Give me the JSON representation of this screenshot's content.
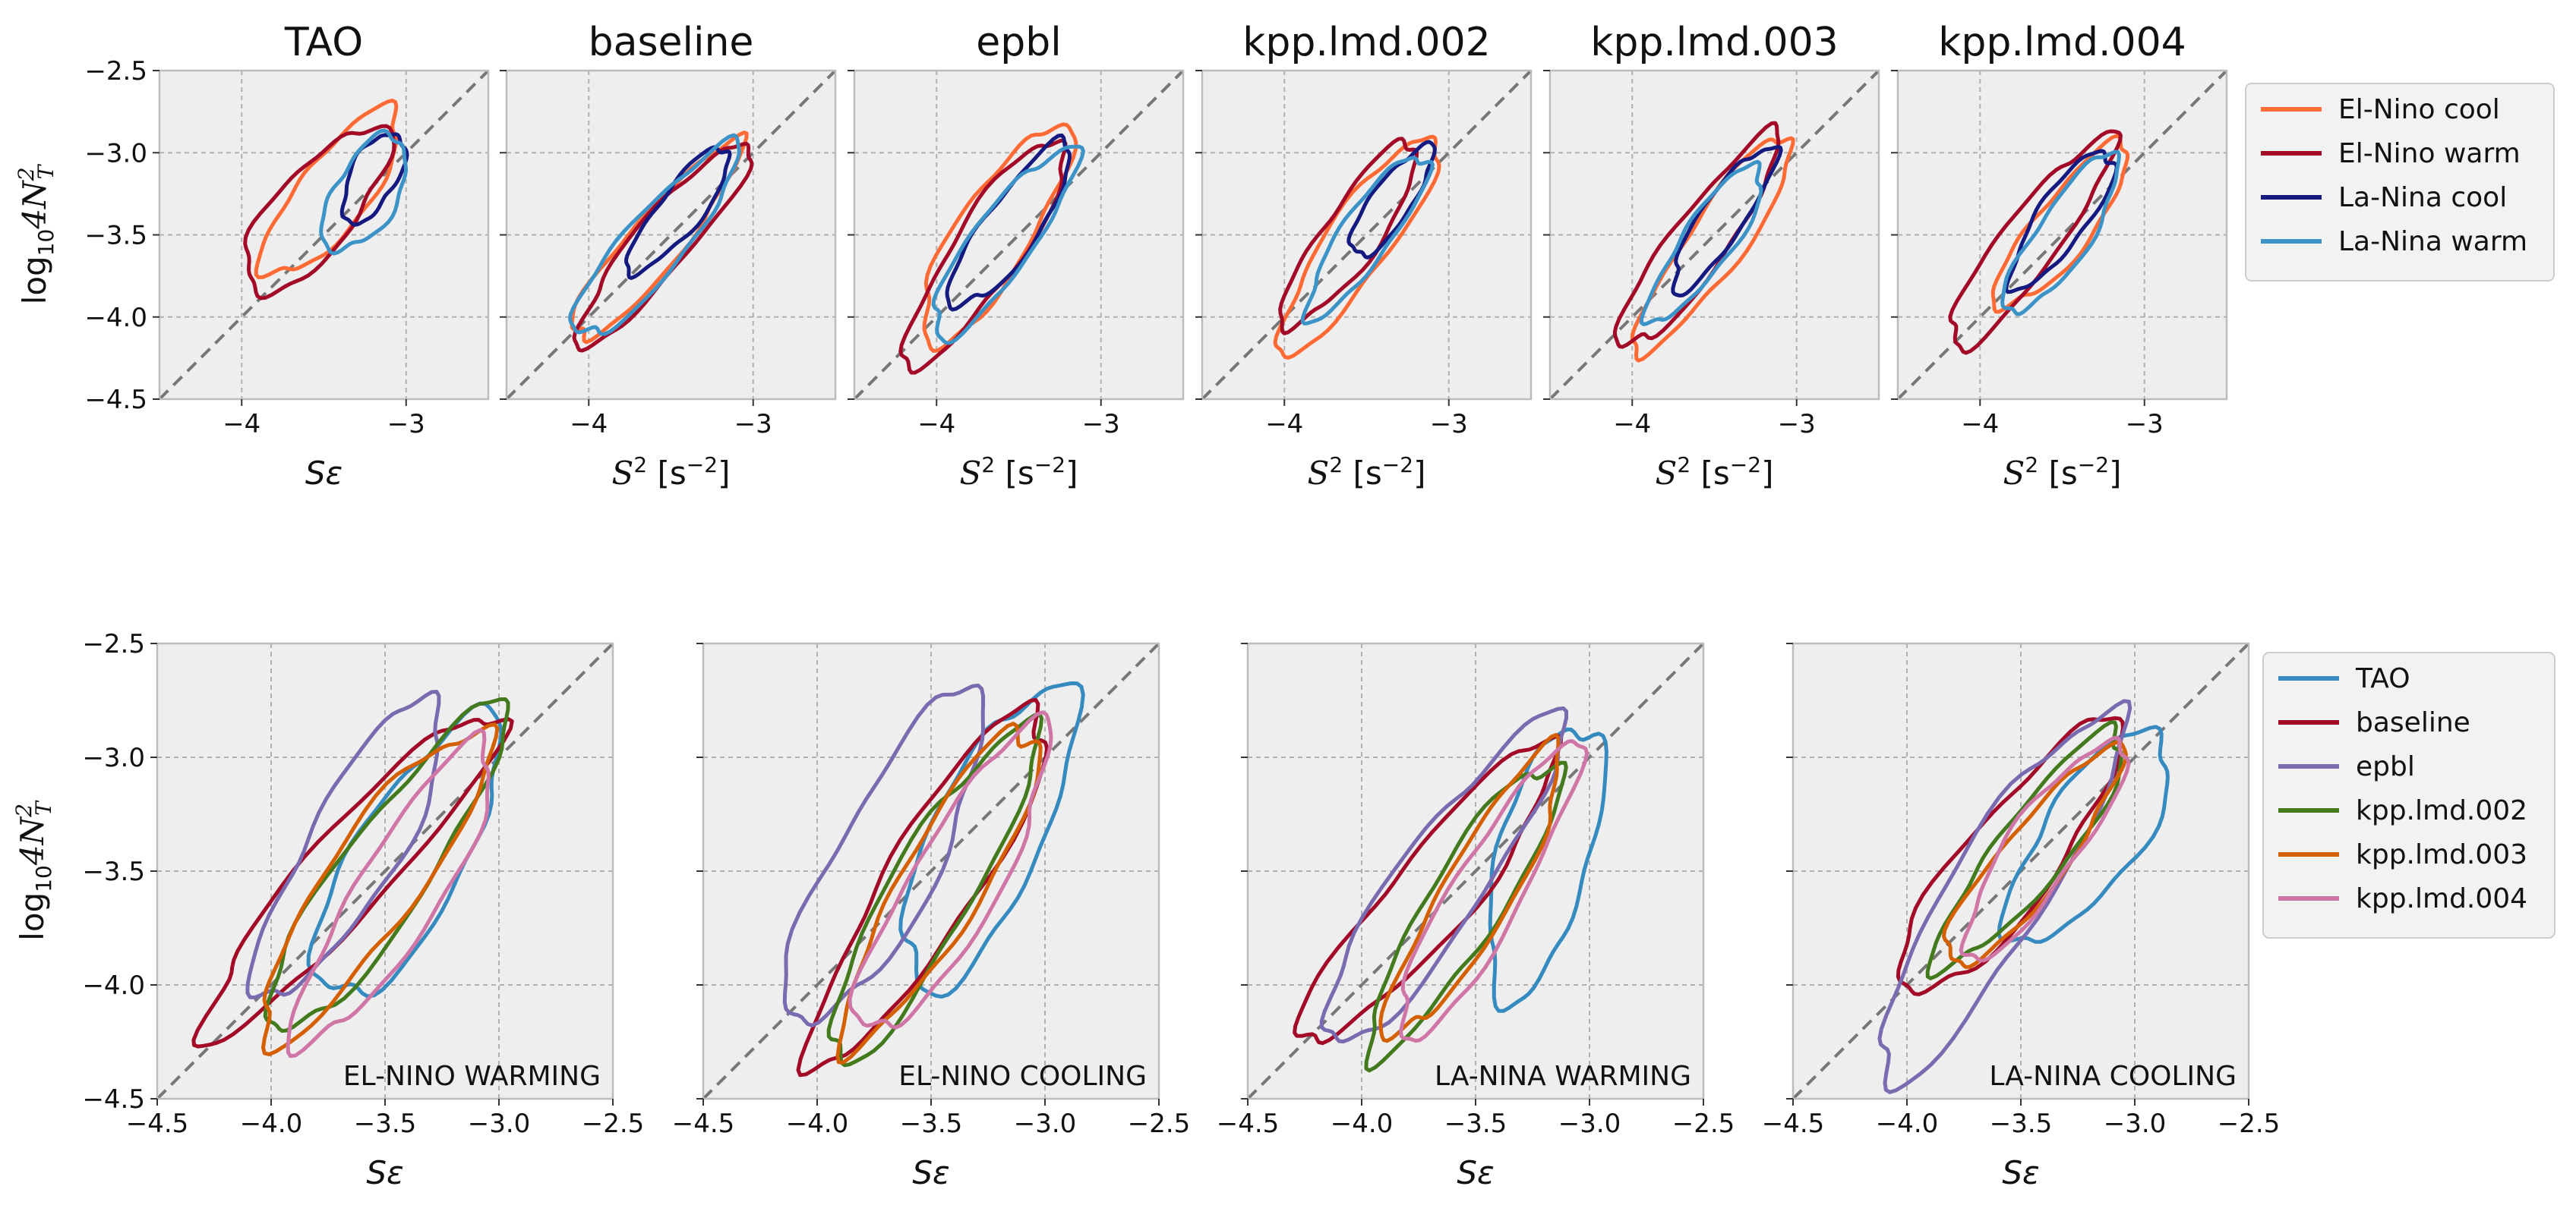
{
  "colors": {
    "El-Nino cool": "#ff6a35",
    "El-Nino warm": "#a20a27",
    "La-Nina cool": "#141a80",
    "La-Nina warm": "#3c93c8",
    "TAO": "#358bbf",
    "baseline": "#a20a27",
    "epbl": "#7a6bb0",
    "kpp.lmd.002": "#447a1e",
    "kpp.lmd.003": "#d46002",
    "kpp.lmd.004": "#cf76a6",
    "axes_bg": "#eeeeee",
    "grid": "#b0b0b0",
    "diagonal": "#777777"
  },
  "chart_data": [
    {
      "type": "contour",
      "title": "TAO",
      "xlabel": "Sε",
      "ylabel": "log10 4N_T^2",
      "xlim": [
        -4.5,
        -2.5
      ],
      "ylim": [
        -4.5,
        -2.5
      ],
      "xticks": [
        -4,
        -3
      ],
      "xticklabels": [
        "−4",
        "−3"
      ],
      "yticks": [
        -4.5,
        -4.0,
        -3.5,
        -3.0,
        -2.5
      ],
      "yticklabels": [
        "−4.5",
        "−4.0",
        "−3.5",
        "−3.0",
        "−2.5"
      ],
      "diagonal": true,
      "grid": true,
      "legend": "right-outside",
      "series": [
        {
          "name": "El-Nino cool",
          "cx": -3.45,
          "cy": -3.25,
          "major": 1.25,
          "minor": 0.42,
          "angle": 52
        },
        {
          "name": "El-Nino warm",
          "cx": -3.55,
          "cy": -3.35,
          "major": 1.25,
          "minor": 0.48,
          "angle": 50
        },
        {
          "name": "La-Nina cool",
          "cx": -3.2,
          "cy": -3.15,
          "major": 0.6,
          "minor": 0.28,
          "angle": 62
        },
        {
          "name": "La-Nina warm",
          "cx": -3.25,
          "cy": -3.25,
          "major": 0.78,
          "minor": 0.38,
          "angle": 60
        }
      ]
    },
    {
      "type": "contour",
      "title": "baseline",
      "xlabel": "S² [s⁻²]",
      "xlim": [
        -4.5,
        -2.5
      ],
      "ylim": [
        -4.5,
        -2.5
      ],
      "xticks": [
        -4,
        -3
      ],
      "xticklabels": [
        "−4",
        "−3"
      ],
      "diagonal": true,
      "grid": true,
      "series": [
        {
          "name": "El-Nino cool",
          "cx": -3.6,
          "cy": -3.55,
          "major": 1.55,
          "minor": 0.32,
          "angle": 50
        },
        {
          "name": "El-Nino warm",
          "cx": -3.55,
          "cy": -3.55,
          "major": 1.6,
          "minor": 0.33,
          "angle": 50
        },
        {
          "name": "La-Nina cool",
          "cx": -3.45,
          "cy": -3.35,
          "major": 0.95,
          "minor": 0.26,
          "angle": 52
        },
        {
          "name": "La-Nina warm",
          "cx": -3.6,
          "cy": -3.55,
          "major": 1.5,
          "minor": 0.36,
          "angle": 50
        }
      ]
    },
    {
      "type": "contour",
      "title": "epbl",
      "xlabel": "S² [s⁻²]",
      "xlim": [
        -4.5,
        -2.5
      ],
      "ylim": [
        -4.5,
        -2.5
      ],
      "xticks": [
        -4,
        -3
      ],
      "xticklabels": [
        "−4",
        "−3"
      ],
      "diagonal": true,
      "grid": true,
      "series": [
        {
          "name": "El-Nino cool",
          "cx": -3.65,
          "cy": -3.5,
          "major": 1.55,
          "minor": 0.45,
          "angle": 58
        },
        {
          "name": "El-Nino warm",
          "cx": -3.7,
          "cy": -3.6,
          "major": 1.65,
          "minor": 0.4,
          "angle": 56
        },
        {
          "name": "La-Nina cool",
          "cx": -3.55,
          "cy": -3.45,
          "major": 1.2,
          "minor": 0.33,
          "angle": 55
        },
        {
          "name": "La-Nina warm",
          "cx": -3.6,
          "cy": -3.55,
          "major": 1.4,
          "minor": 0.36,
          "angle": 54
        }
      ]
    },
    {
      "type": "contour",
      "title": "kpp.lmd.002",
      "xlabel": "S² [s⁻²]",
      "xlim": [
        -4.5,
        -2.5
      ],
      "ylim": [
        -4.5,
        -2.5
      ],
      "xticks": [
        -4,
        -3
      ],
      "xticklabels": [
        "−4",
        "−3"
      ],
      "diagonal": true,
      "grid": true,
      "series": [
        {
          "name": "El-Nino cool",
          "cx": -3.55,
          "cy": -3.55,
          "major": 1.6,
          "minor": 0.38,
          "angle": 55
        },
        {
          "name": "El-Nino warm",
          "cx": -3.6,
          "cy": -3.5,
          "major": 1.35,
          "minor": 0.34,
          "angle": 55
        },
        {
          "name": "La-Nina cool",
          "cx": -3.35,
          "cy": -3.3,
          "major": 0.8,
          "minor": 0.24,
          "angle": 55
        },
        {
          "name": "La-Nina warm",
          "cx": -3.5,
          "cy": -3.5,
          "major": 1.2,
          "minor": 0.3,
          "angle": 55
        }
      ]
    },
    {
      "type": "contour",
      "title": "kpp.lmd.003",
      "xlabel": "S² [s⁻²]",
      "xlim": [
        -4.5,
        -2.5
      ],
      "ylim": [
        -4.5,
        -2.5
      ],
      "xticks": [
        -4,
        -3
      ],
      "xticklabels": [
        "−4",
        "−3"
      ],
      "diagonal": true,
      "grid": true,
      "series": [
        {
          "name": "El-Nino cool",
          "cx": -3.5,
          "cy": -3.55,
          "major": 1.6,
          "minor": 0.34,
          "angle": 55
        },
        {
          "name": "El-Nino warm",
          "cx": -3.6,
          "cy": -3.55,
          "major": 1.6,
          "minor": 0.34,
          "angle": 54
        },
        {
          "name": "La-Nina cool",
          "cx": -3.45,
          "cy": -3.4,
          "major": 1.05,
          "minor": 0.26,
          "angle": 56
        },
        {
          "name": "La-Nina warm",
          "cx": -3.55,
          "cy": -3.55,
          "major": 1.15,
          "minor": 0.3,
          "angle": 55
        }
      ]
    },
    {
      "type": "contour",
      "title": "kpp.lmd.004",
      "xlabel": "S² [s⁻²]",
      "xlim": [
        -4.5,
        -2.5
      ],
      "ylim": [
        -4.5,
        -2.5
      ],
      "xticks": [
        -4,
        -3
      ],
      "xticklabels": [
        "−4",
        "−3"
      ],
      "diagonal": true,
      "grid": true,
      "series": [
        {
          "name": "El-Nino cool",
          "cx": -3.5,
          "cy": -3.45,
          "major": 1.25,
          "minor": 0.34,
          "angle": 52
        },
        {
          "name": "El-Nino warm",
          "cx": -3.7,
          "cy": -3.55,
          "major": 1.6,
          "minor": 0.34,
          "angle": 53
        },
        {
          "name": "La-Nina cool",
          "cx": -3.5,
          "cy": -3.4,
          "major": 1.0,
          "minor": 0.3,
          "angle": 55
        },
        {
          "name": "La-Nina warm",
          "cx": -3.5,
          "cy": -3.5,
          "major": 1.15,
          "minor": 0.32,
          "angle": 56
        }
      ]
    },
    {
      "type": "contour",
      "annotation": "EL-NINO WARMING",
      "xlabel": "Sε",
      "ylabel": "log10 4N_T^2",
      "xlim": [
        -4.5,
        -2.5
      ],
      "ylim": [
        -4.5,
        -2.5
      ],
      "xticks": [
        -4.5,
        -4.0,
        -3.5,
        -3.0,
        -2.5
      ],
      "xticklabels": [
        "−4.5",
        "−4.0",
        "−3.5",
        "−3.0",
        "−2.5"
      ],
      "yticks": [
        -4.5,
        -4.0,
        -3.5,
        -3.0,
        -2.5
      ],
      "yticklabels": [
        "−4.5",
        "−4.0",
        "−3.5",
        "−3.0",
        "−2.5"
      ],
      "diagonal": true,
      "grid": true,
      "legend": "right-outside",
      "series": [
        {
          "name": "TAO",
          "cx": -3.4,
          "cy": -3.45,
          "major": 1.4,
          "minor": 0.48,
          "angle": 60
        },
        {
          "name": "baseline",
          "cx": -3.65,
          "cy": -3.5,
          "major": 1.9,
          "minor": 0.36,
          "angle": 48
        },
        {
          "name": "epbl",
          "cx": -3.65,
          "cy": -3.4,
          "major": 1.5,
          "minor": 0.4,
          "angle": 60
        },
        {
          "name": "kpp.lmd.002",
          "cx": -3.5,
          "cy": -3.5,
          "major": 1.75,
          "minor": 0.38,
          "angle": 55
        },
        {
          "name": "kpp.lmd.003",
          "cx": -3.55,
          "cy": -3.55,
          "major": 1.65,
          "minor": 0.4,
          "angle": 55
        },
        {
          "name": "kpp.lmd.004",
          "cx": -3.45,
          "cy": -3.6,
          "major": 1.55,
          "minor": 0.36,
          "angle": 58
        }
      ]
    },
    {
      "type": "contour",
      "annotation": "EL-NINO COOLING",
      "xlabel": "Sε",
      "xlim": [
        -4.5,
        -2.5
      ],
      "ylim": [
        -4.5,
        -2.5
      ],
      "xticks": [
        -4.5,
        -4.0,
        -3.5,
        -3.0,
        -2.5
      ],
      "xticklabels": [
        "−4.5",
        "−4.0",
        "−3.5",
        "−3.0",
        "−2.5"
      ],
      "diagonal": true,
      "grid": true,
      "series": [
        {
          "name": "TAO",
          "cx": -3.25,
          "cy": -3.35,
          "major": 1.45,
          "minor": 0.48,
          "angle": 65
        },
        {
          "name": "baseline",
          "cx": -3.5,
          "cy": -3.55,
          "major": 1.85,
          "minor": 0.4,
          "angle": 58
        },
        {
          "name": "epbl",
          "cx": -3.7,
          "cy": -3.45,
          "major": 1.65,
          "minor": 0.45,
          "angle": 62
        },
        {
          "name": "kpp.lmd.002",
          "cx": -3.5,
          "cy": -3.6,
          "major": 1.7,
          "minor": 0.36,
          "angle": 60
        },
        {
          "name": "kpp.lmd.003",
          "cx": -3.45,
          "cy": -3.55,
          "major": 1.6,
          "minor": 0.36,
          "angle": 60
        },
        {
          "name": "kpp.lmd.004",
          "cx": -3.4,
          "cy": -3.55,
          "major": 1.55,
          "minor": 0.38,
          "angle": 60
        }
      ]
    },
    {
      "type": "contour",
      "annotation": "LA-NINA WARMING",
      "xlabel": "Sε",
      "xlim": [
        -4.5,
        -2.5
      ],
      "ylim": [
        -4.5,
        -2.5
      ],
      "xticks": [
        -4.5,
        -4.0,
        -3.5,
        -3.0,
        -2.5
      ],
      "xticklabels": [
        "−4.5",
        "−4.0",
        "−3.5",
        "−3.0",
        "−2.5"
      ],
      "diagonal": true,
      "grid": true,
      "series": [
        {
          "name": "TAO",
          "cx": -3.2,
          "cy": -3.45,
          "major": 1.25,
          "minor": 0.4,
          "angle": 75
        },
        {
          "name": "baseline",
          "cx": -3.7,
          "cy": -3.6,
          "major": 1.7,
          "minor": 0.35,
          "angle": 50
        },
        {
          "name": "epbl",
          "cx": -3.65,
          "cy": -3.55,
          "major": 1.75,
          "minor": 0.38,
          "angle": 55
        },
        {
          "name": "kpp.lmd.002",
          "cx": -3.55,
          "cy": -3.65,
          "major": 1.5,
          "minor": 0.32,
          "angle": 58
        },
        {
          "name": "kpp.lmd.003",
          "cx": -3.5,
          "cy": -3.6,
          "major": 1.45,
          "minor": 0.3,
          "angle": 60
        },
        {
          "name": "kpp.lmd.004",
          "cx": -3.45,
          "cy": -3.6,
          "major": 1.5,
          "minor": 0.3,
          "angle": 60
        }
      ]
    },
    {
      "type": "contour",
      "annotation": "LA-NINA COOLING",
      "xlabel": "Sε",
      "xlim": [
        -4.5,
        -2.5
      ],
      "ylim": [
        -4.5,
        -2.5
      ],
      "xticks": [
        -4.5,
        -4.0,
        -3.5,
        -3.0,
        -2.5
      ],
      "xticklabels": [
        "−4.5",
        "−4.0",
        "−3.5",
        "−3.0",
        "−2.5"
      ],
      "diagonal": true,
      "grid": true,
      "series": [
        {
          "name": "TAO",
          "cx": -3.2,
          "cy": -3.35,
          "major": 1.1,
          "minor": 0.42,
          "angle": 55
        },
        {
          "name": "baseline",
          "cx": -3.55,
          "cy": -3.45,
          "major": 1.5,
          "minor": 0.4,
          "angle": 52
        },
        {
          "name": "epbl",
          "cx": -3.6,
          "cy": -3.6,
          "major": 1.9,
          "minor": 0.42,
          "angle": 58
        },
        {
          "name": "kpp.lmd.002",
          "cx": -3.45,
          "cy": -3.4,
          "major": 1.3,
          "minor": 0.3,
          "angle": 52
        },
        {
          "name": "kpp.lmd.003",
          "cx": -3.45,
          "cy": -3.45,
          "major": 1.2,
          "minor": 0.28,
          "angle": 52
        },
        {
          "name": "kpp.lmd.004",
          "cx": -3.4,
          "cy": -3.4,
          "major": 1.15,
          "minor": 0.3,
          "angle": 55
        }
      ]
    }
  ],
  "legends": {
    "top": [
      "El-Nino cool",
      "El-Nino warm",
      "La-Nina cool",
      "La-Nina warm"
    ],
    "bottom": [
      "TAO",
      "baseline",
      "epbl",
      "kpp.lmd.002",
      "kpp.lmd.003",
      "kpp.lmd.004"
    ]
  }
}
